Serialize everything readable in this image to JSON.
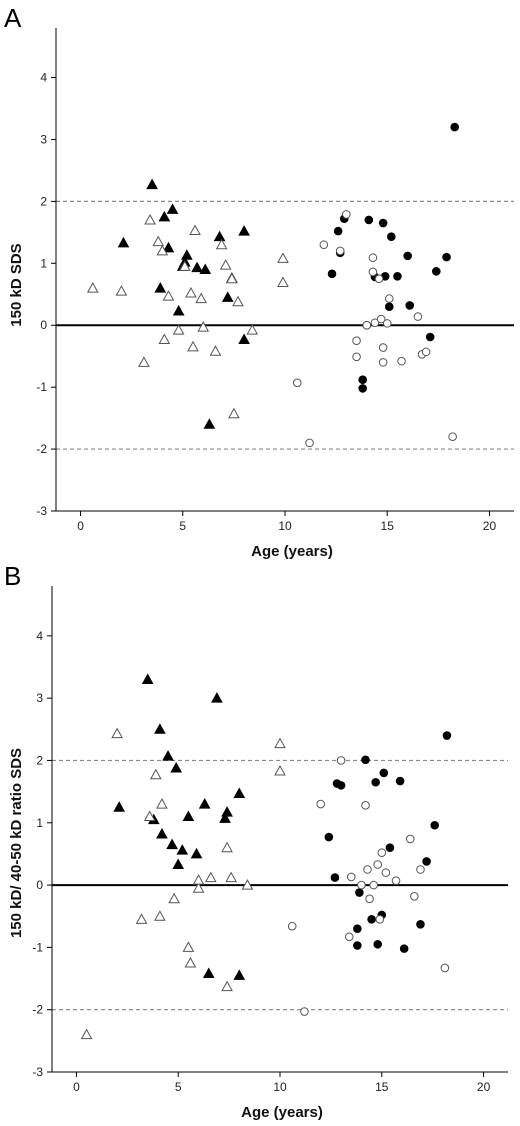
{
  "chart_data": [
    {
      "type": "scatter",
      "panel_label": "A",
      "xlabel": "Age (years)",
      "ylabel": "150 kD SDS",
      "xlim": [
        -1.2,
        21.2
      ],
      "ylim": [
        -3,
        4.8
      ],
      "xticks": [
        0,
        5,
        10,
        15,
        20
      ],
      "yticks": [
        -3,
        -2,
        -1,
        0,
        1,
        2,
        3,
        4
      ],
      "reference_lines": [
        {
          "y": 0,
          "style": "solid"
        },
        {
          "y": 2,
          "style": "dashed"
        },
        {
          "y": -2,
          "style": "dashed"
        }
      ],
      "series": [
        {
          "marker": "filled-triangle",
          "points": [
            [
              2.1,
              1.33
            ],
            [
              3.5,
              2.27
            ],
            [
              3.9,
              0.6
            ],
            [
              4.1,
              1.75
            ],
            [
              4.3,
              1.25
            ],
            [
              4.5,
              1.87
            ],
            [
              4.8,
              0.23
            ],
            [
              5.0,
              0.95
            ],
            [
              5.1,
              1.02
            ],
            [
              5.2,
              1.13
            ],
            [
              5.7,
              0.93
            ],
            [
              6.1,
              0.9
            ],
            [
              6.3,
              -1.6
            ],
            [
              6.8,
              1.43
            ],
            [
              7.2,
              0.45
            ],
            [
              7.4,
              0.76
            ],
            [
              8.0,
              1.52
            ],
            [
              8.0,
              -0.23
            ]
          ]
        },
        {
          "marker": "open-triangle",
          "points": [
            [
              0.6,
              0.6
            ],
            [
              2.0,
              0.55
            ],
            [
              3.1,
              -0.6
            ],
            [
              3.4,
              1.7
            ],
            [
              3.8,
              1.35
            ],
            [
              4.0,
              1.2
            ],
            [
              4.1,
              -0.23
            ],
            [
              4.3,
              0.47
            ],
            [
              4.8,
              -0.08
            ],
            [
              5.1,
              0.95
            ],
            [
              5.4,
              0.52
            ],
            [
              5.5,
              -0.35
            ],
            [
              5.6,
              1.53
            ],
            [
              5.9,
              0.43
            ],
            [
              6.0,
              -0.03
            ],
            [
              6.6,
              -0.42
            ],
            [
              6.9,
              1.3
            ],
            [
              7.1,
              0.97
            ],
            [
              7.4,
              0.75
            ],
            [
              7.5,
              -1.43
            ],
            [
              7.7,
              0.38
            ],
            [
              8.4,
              -0.08
            ],
            [
              9.9,
              1.08
            ],
            [
              9.9,
              0.69
            ]
          ]
        },
        {
          "marker": "filled-circle",
          "points": [
            [
              12.3,
              0.83
            ],
            [
              12.6,
              1.52
            ],
            [
              12.7,
              1.17
            ],
            [
              12.9,
              1.72
            ],
            [
              13.8,
              -0.88
            ],
            [
              13.8,
              -1.02
            ],
            [
              14.0,
              0.0
            ],
            [
              14.1,
              1.7
            ],
            [
              14.4,
              0.78
            ],
            [
              14.8,
              1.65
            ],
            [
              14.9,
              0.79
            ],
            [
              15.1,
              0.3
            ],
            [
              15.2,
              1.43
            ],
            [
              15.5,
              0.79
            ],
            [
              16.0,
              1.12
            ],
            [
              16.1,
              0.32
            ],
            [
              17.1,
              -0.19
            ],
            [
              17.4,
              0.87
            ],
            [
              17.9,
              1.1
            ],
            [
              18.3,
              3.2
            ]
          ]
        },
        {
          "marker": "open-circle",
          "points": [
            [
              10.6,
              -0.93
            ],
            [
              11.2,
              -1.9
            ],
            [
              11.9,
              1.3
            ],
            [
              12.7,
              1.2
            ],
            [
              13.0,
              1.79
            ],
            [
              13.5,
              -0.25
            ],
            [
              13.5,
              -0.51
            ],
            [
              14.0,
              0.0
            ],
            [
              14.3,
              1.09
            ],
            [
              14.3,
              0.86
            ],
            [
              14.4,
              0.04
            ],
            [
              14.6,
              0.75
            ],
            [
              14.7,
              0.1
            ],
            [
              14.8,
              -0.36
            ],
            [
              14.8,
              -0.6
            ],
            [
              15.0,
              0.03
            ],
            [
              15.1,
              0.43
            ],
            [
              15.7,
              -0.58
            ],
            [
              16.5,
              0.14
            ],
            [
              16.7,
              -0.47
            ],
            [
              16.9,
              -0.43
            ],
            [
              18.2,
              -1.8
            ]
          ]
        }
      ]
    },
    {
      "type": "scatter",
      "panel_label": "B",
      "xlabel": "Age (years)",
      "ylabel": "150 kD/ 40-50 kD ratio SDS",
      "xlim": [
        -1.2,
        21.2
      ],
      "ylim": [
        -3,
        4.8
      ],
      "xticks": [
        0,
        5,
        10,
        15,
        20
      ],
      "yticks": [
        -3,
        -2,
        -1,
        0,
        1,
        2,
        3,
        4
      ],
      "reference_lines": [
        {
          "y": 0,
          "style": "solid"
        },
        {
          "y": 2,
          "style": "dashed"
        },
        {
          "y": -2,
          "style": "dashed"
        }
      ],
      "series": [
        {
          "marker": "filled-triangle",
          "points": [
            [
              2.1,
              1.25
            ],
            [
              3.5,
              3.3
            ],
            [
              3.8,
              1.05
            ],
            [
              4.1,
              2.5
            ],
            [
              4.2,
              0.82
            ],
            [
              4.5,
              2.07
            ],
            [
              4.7,
              0.65
            ],
            [
              4.9,
              1.88
            ],
            [
              5.0,
              0.33
            ],
            [
              5.2,
              0.56
            ],
            [
              5.5,
              1.1
            ],
            [
              5.9,
              0.5
            ],
            [
              6.3,
              1.3
            ],
            [
              6.5,
              -1.42
            ],
            [
              6.9,
              3.0
            ],
            [
              7.3,
              1.07
            ],
            [
              7.4,
              1.17
            ],
            [
              8.0,
              1.47
            ],
            [
              8.0,
              -1.45
            ]
          ]
        },
        {
          "marker": "open-triangle",
          "points": [
            [
              0.5,
              -2.4
            ],
            [
              2.0,
              2.43
            ],
            [
              3.2,
              -0.55
            ],
            [
              3.6,
              1.1
            ],
            [
              3.9,
              1.77
            ],
            [
              4.1,
              -0.5
            ],
            [
              4.2,
              1.3
            ],
            [
              4.8,
              -0.22
            ],
            [
              5.5,
              -1.0
            ],
            [
              5.6,
              -1.25
            ],
            [
              6.0,
              -0.05
            ],
            [
              6.0,
              0.08
            ],
            [
              6.6,
              0.12
            ],
            [
              7.4,
              0.6
            ],
            [
              7.4,
              -1.63
            ],
            [
              7.6,
              0.12
            ],
            [
              8.4,
              0.0
            ],
            [
              10.0,
              2.27
            ],
            [
              10.0,
              1.83
            ]
          ]
        },
        {
          "marker": "filled-circle",
          "points": [
            [
              12.4,
              0.77
            ],
            [
              12.7,
              0.12
            ],
            [
              12.8,
              1.63
            ],
            [
              13.0,
              1.6
            ],
            [
              13.8,
              -0.7
            ],
            [
              13.8,
              -0.97
            ],
            [
              13.9,
              -0.12
            ],
            [
              14.2,
              2.01
            ],
            [
              14.5,
              -0.55
            ],
            [
              14.7,
              1.65
            ],
            [
              14.8,
              -0.95
            ],
            [
              15.0,
              -0.48
            ],
            [
              15.1,
              1.8
            ],
            [
              15.4,
              0.6
            ],
            [
              15.9,
              1.67
            ],
            [
              16.1,
              -1.02
            ],
            [
              16.9,
              -0.63
            ],
            [
              17.2,
              0.38
            ],
            [
              17.6,
              0.96
            ],
            [
              18.2,
              2.4
            ]
          ]
        },
        {
          "marker": "open-circle",
          "points": [
            [
              10.6,
              -0.66
            ],
            [
              11.2,
              -2.03
            ],
            [
              12.0,
              1.3
            ],
            [
              13.0,
              2.0
            ],
            [
              13.4,
              -0.83
            ],
            [
              13.5,
              0.13
            ],
            [
              14.0,
              0.0
            ],
            [
              14.2,
              1.28
            ],
            [
              14.3,
              0.25
            ],
            [
              14.4,
              -0.22
            ],
            [
              14.6,
              0.0
            ],
            [
              14.8,
              0.33
            ],
            [
              14.9,
              -0.55
            ],
            [
              15.0,
              0.52
            ],
            [
              15.2,
              0.2
            ],
            [
              15.7,
              0.07
            ],
            [
              16.4,
              0.74
            ],
            [
              16.6,
              -0.18
            ],
            [
              16.9,
              0.25
            ],
            [
              18.1,
              -1.33
            ]
          ]
        }
      ]
    }
  ]
}
